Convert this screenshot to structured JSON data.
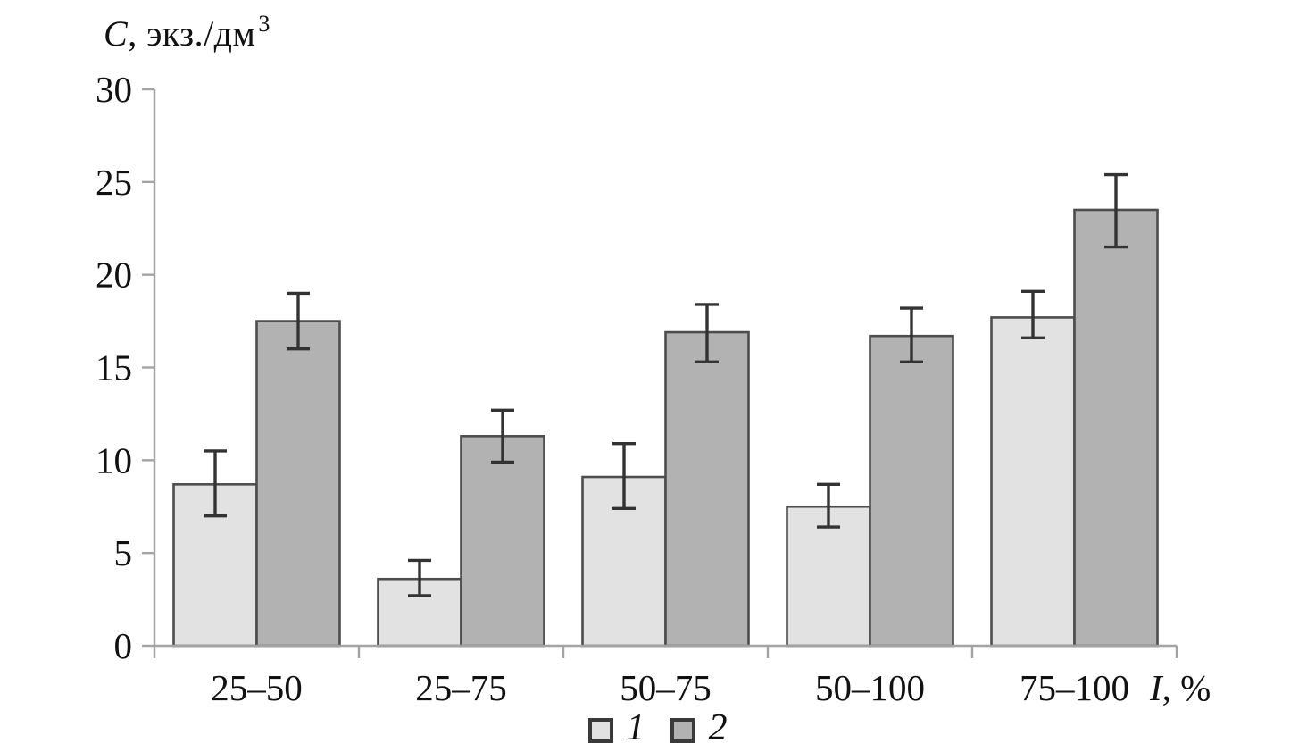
{
  "chart_data": {
    "type": "bar",
    "title": "",
    "ylabel": "C, экз./дм³",
    "ylabel_italic": "C",
    "ylabel_rest": ", экз./дм",
    "ylabel_sup": "3",
    "xlabel": "I, %",
    "xlabel_italic": "I",
    "xlabel_rest": ", %",
    "categories": [
      "25–50",
      "25–75",
      "50–75",
      "50–100",
      "75–100"
    ],
    "y_ticks": [
      0,
      5,
      10,
      15,
      20,
      25,
      30
    ],
    "ylim": [
      0,
      30
    ],
    "grid": false,
    "legend_position": "bottom-center",
    "series": [
      {
        "name": "1",
        "fill": "#e2e2e2",
        "values": [
          8.7,
          3.6,
          9.1,
          7.5,
          17.7
        ],
        "error_low": [
          7.0,
          2.7,
          7.4,
          6.4,
          16.6
        ],
        "error_high": [
          10.5,
          4.6,
          10.9,
          8.7,
          19.1
        ]
      },
      {
        "name": "2",
        "fill": "#b2b2b2",
        "values": [
          17.5,
          11.3,
          16.9,
          16.7,
          23.5
        ],
        "error_low": [
          16.0,
          9.9,
          15.3,
          15.3,
          21.5
        ],
        "error_high": [
          19.0,
          12.7,
          18.4,
          18.2,
          25.4
        ]
      }
    ],
    "colors": {
      "bar_border": "#4d4d4d",
      "error": "#333333",
      "axis": "#a3a3a3",
      "text": "#111111"
    }
  }
}
